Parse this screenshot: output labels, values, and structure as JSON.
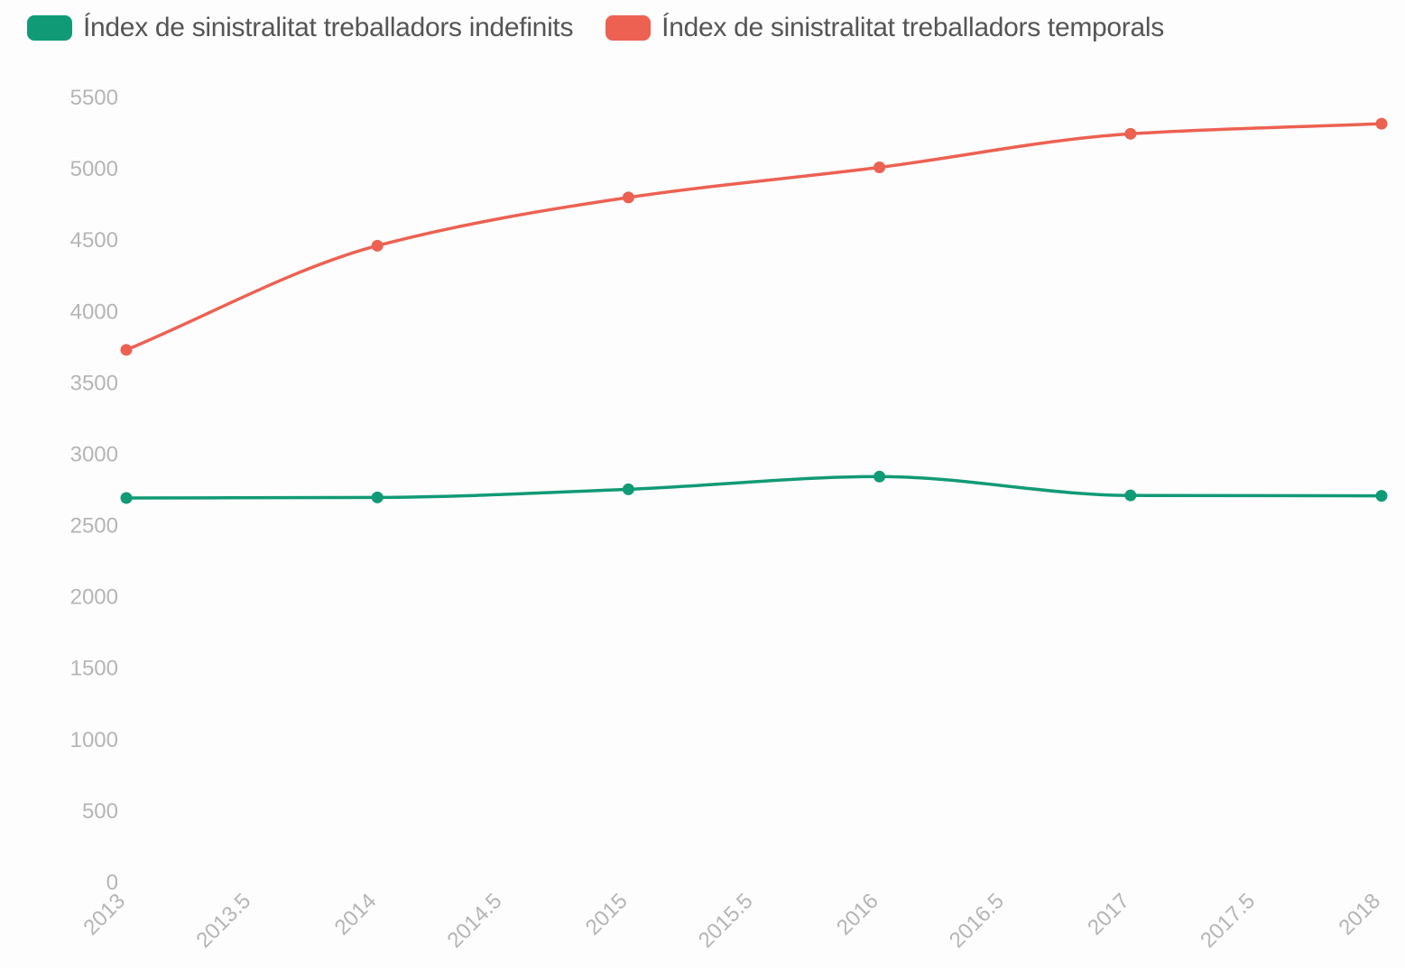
{
  "legend": [
    {
      "label": "Índex de sinistralitat treballadors indefinits",
      "color": "#119a76"
    },
    {
      "label": "Índex de sinistralitat treballadors temporals",
      "color": "#ec6152"
    }
  ],
  "chart_data": {
    "type": "line",
    "title": "",
    "xlabel": "",
    "ylabel": "",
    "x": [
      2013,
      2014,
      2015,
      2016,
      2017,
      2018
    ],
    "xlim": [
      2013,
      2018
    ],
    "ylim": [
      0,
      5500
    ],
    "x_ticks": [
      "2013",
      "2013.5",
      "2014",
      "2014.5",
      "2015",
      "2015.5",
      "2016",
      "2016.5",
      "2017",
      "2017.5",
      "2018"
    ],
    "y_ticks": [
      "0",
      "500",
      "1000",
      "1500",
      "2000",
      "2500",
      "3000",
      "3500",
      "4000",
      "4500",
      "5000",
      "5500"
    ],
    "grid": false,
    "legend_position": "top-left",
    "series": [
      {
        "name": "Índex de sinistralitat treballadors indefinits",
        "color": "#119a76",
        "values": [
          2693,
          2697,
          2754,
          2843,
          2711,
          2708
        ]
      },
      {
        "name": "Índex de sinistralitat treballadors temporals",
        "color": "#ec6152",
        "values": [
          3731,
          4461,
          4799,
          5010,
          5245,
          5316
        ]
      }
    ]
  }
}
